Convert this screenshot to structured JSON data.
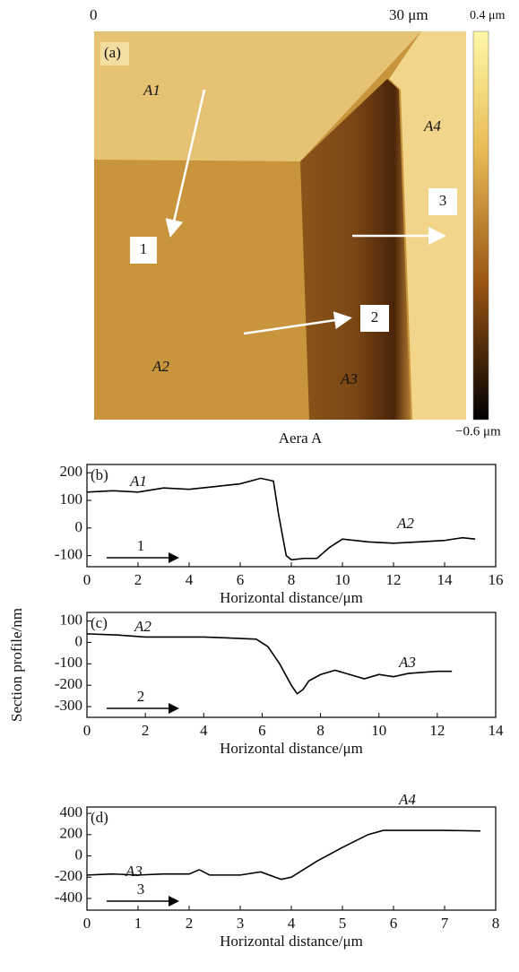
{
  "chart_data": [
    {
      "type": "image",
      "panel_label": "(a)",
      "x_start_label": "0",
      "x_end_label": "30 μm",
      "colorbar_max_label": "0.4 μm",
      "colorbar_min_label": "−0.6 μm",
      "caption": "Aera A",
      "regions": [
        "A1",
        "A2",
        "A3",
        "A4"
      ],
      "arrows": [
        "1",
        "2",
        "3"
      ]
    },
    {
      "type": "line",
      "panel_label": "(b)",
      "xlabel": "Horizontal distance/μm",
      "x": [
        0,
        1,
        2,
        3,
        4,
        5,
        6,
        6.8,
        7.3,
        7.5,
        7.8,
        8,
        8.5,
        9,
        9.5,
        10,
        11,
        12,
        13,
        14,
        14.7,
        15.2
      ],
      "values": [
        130,
        135,
        130,
        145,
        140,
        150,
        160,
        180,
        170,
        50,
        -100,
        -115,
        -110,
        -110,
        -70,
        -40,
        -50,
        -55,
        -50,
        -45,
        -35,
        -40
      ],
      "color": "#000000",
      "xlim": [
        0,
        16
      ],
      "xticks": [
        0,
        2,
        4,
        6,
        8,
        10,
        12,
        14,
        16
      ],
      "ylim": [
        -140,
        230
      ],
      "yticks": [
        -100,
        0,
        100,
        200
      ],
      "annotations": [
        "A1",
        "A2"
      ],
      "arrow_label": "1"
    },
    {
      "type": "line",
      "panel_label": "(c)",
      "xlabel": "Horizontal distance/μm",
      "ylabel": "Section profile/nm",
      "x": [
        0,
        1,
        2,
        3,
        4,
        5,
        5.8,
        6.2,
        6.6,
        7,
        7.2,
        7.4,
        7.6,
        8,
        8.5,
        9,
        9.5,
        10,
        10.5,
        11,
        11.5,
        12,
        12.5
      ],
      "values": [
        40,
        35,
        25,
        25,
        25,
        20,
        15,
        -20,
        -100,
        -200,
        -240,
        -220,
        -180,
        -150,
        -130,
        -150,
        -170,
        -150,
        -160,
        -145,
        -140,
        -135,
        -135
      ],
      "color": "#000000",
      "xlim": [
        0,
        14
      ],
      "xticks": [
        0,
        2,
        4,
        6,
        8,
        10,
        12,
        14
      ],
      "ylim": [
        -350,
        140
      ],
      "yticks": [
        -300,
        -200,
        -100,
        0,
        100
      ],
      "annotations": [
        "A2",
        "A3"
      ],
      "arrow_label": "2"
    },
    {
      "type": "line",
      "panel_label": "(d)",
      "xlabel": "Horizontal distance/μm",
      "x": [
        0,
        0.5,
        1,
        1.5,
        2,
        2.2,
        2.4,
        3,
        3.4,
        3.8,
        4,
        4.5,
        5,
        5.5,
        5.8,
        6.5,
        7,
        7.7
      ],
      "values": [
        -180,
        -170,
        -180,
        -170,
        -170,
        -130,
        -180,
        -180,
        -150,
        -220,
        -200,
        -50,
        80,
        200,
        240,
        240,
        240,
        235
      ],
      "color": "#000000",
      "xlim": [
        0,
        8
      ],
      "xticks": [
        0,
        1,
        2,
        3,
        4,
        5,
        6,
        7,
        8
      ],
      "ylim": [
        -510,
        460
      ],
      "yticks": [
        -400,
        -200,
        0,
        200,
        400
      ],
      "annotations": [
        "A3",
        "A4"
      ],
      "arrow_label": "3"
    }
  ]
}
